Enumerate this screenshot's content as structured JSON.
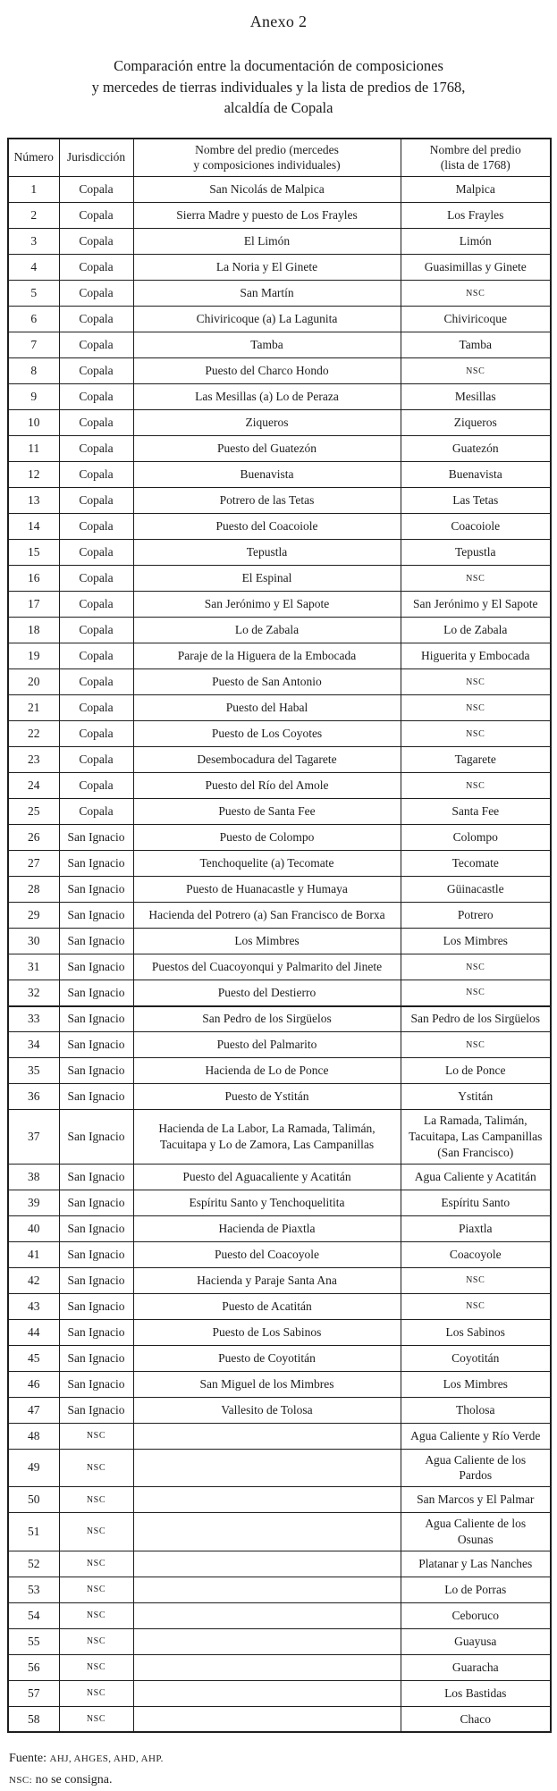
{
  "page": {
    "title": "Anexo 2",
    "subtitle_lines": [
      "Comparación entre la documentación de composiciones",
      "y mercedes de tierras individuales y la lista de predios de 1768,",
      "alcaldía de Copala"
    ]
  },
  "table": {
    "headers": {
      "numero": "Número",
      "jurisdiccion": "Jurisdicción",
      "predio_mercedes": "Nombre del predio (mercedes\ny composiciones individuales)",
      "predio_lista": "Nombre del predio\n(lista de 1768)"
    },
    "rows": [
      {
        "numero": "1",
        "jurisdiccion": "Copala",
        "mercedes": "San Nicolás de Malpica",
        "lista": "Malpica"
      },
      {
        "numero": "2",
        "jurisdiccion": "Copala",
        "mercedes": "Sierra Madre y puesto de Los Frayles",
        "lista": "Los Frayles"
      },
      {
        "numero": "3",
        "jurisdiccion": "Copala",
        "mercedes": "El Limón",
        "lista": "Limón"
      },
      {
        "numero": "4",
        "jurisdiccion": "Copala",
        "mercedes": "La Noria y El Ginete",
        "lista": "Guasimillas y Ginete"
      },
      {
        "numero": "5",
        "jurisdiccion": "Copala",
        "mercedes": "San Martín",
        "lista": "NSC"
      },
      {
        "numero": "6",
        "jurisdiccion": "Copala",
        "mercedes": "Chiviricoque (a) La Lagunita",
        "lista": "Chiviricoque"
      },
      {
        "numero": "7",
        "jurisdiccion": "Copala",
        "mercedes": "Tamba",
        "lista": "Tamba"
      },
      {
        "numero": "8",
        "jurisdiccion": "Copala",
        "mercedes": "Puesto del Charco Hondo",
        "lista": "NSC"
      },
      {
        "numero": "9",
        "jurisdiccion": "Copala",
        "mercedes": "Las Mesillas (a) Lo de Peraza",
        "lista": "Mesillas"
      },
      {
        "numero": "10",
        "jurisdiccion": "Copala",
        "mercedes": "Ziqueros",
        "lista": "Ziqueros"
      },
      {
        "numero": "11",
        "jurisdiccion": "Copala",
        "mercedes": "Puesto del Guatezón",
        "lista": "Guatezón"
      },
      {
        "numero": "12",
        "jurisdiccion": "Copala",
        "mercedes": "Buenavista",
        "lista": "Buenavista"
      },
      {
        "numero": "13",
        "jurisdiccion": "Copala",
        "mercedes": "Potrero de las Tetas",
        "lista": "Las Tetas"
      },
      {
        "numero": "14",
        "jurisdiccion": "Copala",
        "mercedes": "Puesto del Coacoiole",
        "lista": "Coacoiole"
      },
      {
        "numero": "15",
        "jurisdiccion": "Copala",
        "mercedes": "Tepustla",
        "lista": "Tepustla"
      },
      {
        "numero": "16",
        "jurisdiccion": "Copala",
        "mercedes": "El Espinal",
        "lista": "NSC"
      },
      {
        "numero": "17",
        "jurisdiccion": "Copala",
        "mercedes": "San Jerónimo y El Sapote",
        "lista": "San Jerónimo y El Sapote"
      },
      {
        "numero": "18",
        "jurisdiccion": "Copala",
        "mercedes": "Lo de Zabala",
        "lista": "Lo de Zabala"
      },
      {
        "numero": "19",
        "jurisdiccion": "Copala",
        "mercedes": "Paraje de la Higuera de la Embocada",
        "lista": "Higuerita y Embocada"
      },
      {
        "numero": "20",
        "jurisdiccion": "Copala",
        "mercedes": "Puesto de San Antonio",
        "lista": "NSC"
      },
      {
        "numero": "21",
        "jurisdiccion": "Copala",
        "mercedes": "Puesto del Habal",
        "lista": "NSC"
      },
      {
        "numero": "22",
        "jurisdiccion": "Copala",
        "mercedes": "Puesto de Los Coyotes",
        "lista": "NSC"
      },
      {
        "numero": "23",
        "jurisdiccion": "Copala",
        "mercedes": "Desembocadura del Tagarete",
        "lista": "Tagarete"
      },
      {
        "numero": "24",
        "jurisdiccion": "Copala",
        "mercedes": "Puesto del Río del Amole",
        "lista": "NSC"
      },
      {
        "numero": "25",
        "jurisdiccion": "Copala",
        "mercedes": "Puesto de Santa Fee",
        "lista": "Santa Fee"
      },
      {
        "numero": "26",
        "jurisdiccion": "San Ignacio",
        "mercedes": "Puesto de Colompo",
        "lista": "Colompo"
      },
      {
        "numero": "27",
        "jurisdiccion": "San Ignacio",
        "mercedes": "Tenchoquelite (a) Tecomate",
        "lista": "Tecomate"
      },
      {
        "numero": "28",
        "jurisdiccion": "San Ignacio",
        "mercedes": "Puesto de Huanacastle y Humaya",
        "lista": "Güinacastle"
      },
      {
        "numero": "29",
        "jurisdiccion": "San Ignacio",
        "mercedes": "Hacienda del Potrero (a) San Francisco de Borxa",
        "lista": "Potrero"
      },
      {
        "numero": "30",
        "jurisdiccion": "San Ignacio",
        "mercedes": "Los Mimbres",
        "lista": "Los Mimbres"
      },
      {
        "numero": "31",
        "jurisdiccion": "San Ignacio",
        "mercedes": "Puestos del Cuacoyonqui y Palmarito del Jinete",
        "lista": "NSC"
      },
      {
        "numero": "32",
        "jurisdiccion": "San Ignacio",
        "mercedes": "Puesto del Destierro",
        "lista": "NSC"
      },
      {
        "numero": "33",
        "jurisdiccion": "San Ignacio",
        "mercedes": "San Pedro de los Sirgüelos",
        "lista": "San Pedro de los Sirgüelos"
      },
      {
        "numero": "34",
        "jurisdiccion": "San Ignacio",
        "mercedes": "Puesto del Palmarito",
        "lista": "NSC"
      },
      {
        "numero": "35",
        "jurisdiccion": "San Ignacio",
        "mercedes": "Hacienda de Lo de Ponce",
        "lista": "Lo de Ponce"
      },
      {
        "numero": "36",
        "jurisdiccion": "San Ignacio",
        "mercedes": "Puesto de Ystitán",
        "lista": "Ystitán"
      },
      {
        "numero": "37",
        "jurisdiccion": "San Ignacio",
        "mercedes": "Hacienda de La Labor, La Ramada, Talimán,\nTacuitapa y Lo de Zamora, Las Campanillas",
        "lista": "La Ramada, Talimán,\nTacuitapa, Las Campanillas\n(San Francisco)"
      },
      {
        "numero": "38",
        "jurisdiccion": "San Ignacio",
        "mercedes": "Puesto del Aguacaliente y Acatitán",
        "lista": "Agua Caliente y Acatitán"
      },
      {
        "numero": "39",
        "jurisdiccion": "San Ignacio",
        "mercedes": "Espíritu Santo y Tenchoquelitita",
        "lista": "Espíritu Santo"
      },
      {
        "numero": "40",
        "jurisdiccion": "San Ignacio",
        "mercedes": "Hacienda de Piaxtla",
        "lista": "Piaxtla"
      },
      {
        "numero": "41",
        "jurisdiccion": "San Ignacio",
        "mercedes": "Puesto del Coacoyole",
        "lista": "Coacoyole"
      },
      {
        "numero": "42",
        "jurisdiccion": "San Ignacio",
        "mercedes": "Hacienda y Paraje Santa Ana",
        "lista": "NSC"
      },
      {
        "numero": "43",
        "jurisdiccion": "San Ignacio",
        "mercedes": "Puesto de Acatitán",
        "lista": "NSC"
      },
      {
        "numero": "44",
        "jurisdiccion": "San Ignacio",
        "mercedes": "Puesto de Los Sabinos",
        "lista": "Los Sabinos"
      },
      {
        "numero": "45",
        "jurisdiccion": "San Ignacio",
        "mercedes": "Puesto de Coyotitán",
        "lista": "Coyotitán"
      },
      {
        "numero": "46",
        "jurisdiccion": "San Ignacio",
        "mercedes": "San Miguel de los Mimbres",
        "lista": "Los Mimbres"
      },
      {
        "numero": "47",
        "jurisdiccion": "San Ignacio",
        "mercedes": "Vallesito de Tolosa",
        "lista": "Tholosa"
      },
      {
        "numero": "48",
        "jurisdiccion": "NSC",
        "mercedes": "",
        "lista": "Agua Caliente y Río Verde"
      },
      {
        "numero": "49",
        "jurisdiccion": "NSC",
        "mercedes": "",
        "lista": "Agua Caliente de los\nPardos"
      },
      {
        "numero": "50",
        "jurisdiccion": "NSC",
        "mercedes": "",
        "lista": "San Marcos y El Palmar"
      },
      {
        "numero": "51",
        "jurisdiccion": "NSC",
        "mercedes": "",
        "lista": "Agua Caliente de los\nOsunas"
      },
      {
        "numero": "52",
        "jurisdiccion": "NSC",
        "mercedes": "",
        "lista": "Platanar y Las Nanches"
      },
      {
        "numero": "53",
        "jurisdiccion": "NSC",
        "mercedes": "",
        "lista": "Lo de Porras"
      },
      {
        "numero": "54",
        "jurisdiccion": "NSC",
        "mercedes": "",
        "lista": "Ceboruco"
      },
      {
        "numero": "55",
        "jurisdiccion": "NSC",
        "mercedes": "",
        "lista": "Guayusa"
      },
      {
        "numero": "56",
        "jurisdiccion": "NSC",
        "mercedes": "",
        "lista": "Guaracha"
      },
      {
        "numero": "57",
        "jurisdiccion": "NSC",
        "mercedes": "",
        "lista": "Los Bastidas"
      },
      {
        "numero": "58",
        "jurisdiccion": "NSC",
        "mercedes": "",
        "lista": "Chaco"
      }
    ]
  },
  "footer": {
    "fuente_label": "Fuente: ",
    "fuente_archives": "AHJ, AHGES, AHD, AHP.",
    "nsc_label": "NSC:",
    "nsc_text": " no se consigna."
  }
}
